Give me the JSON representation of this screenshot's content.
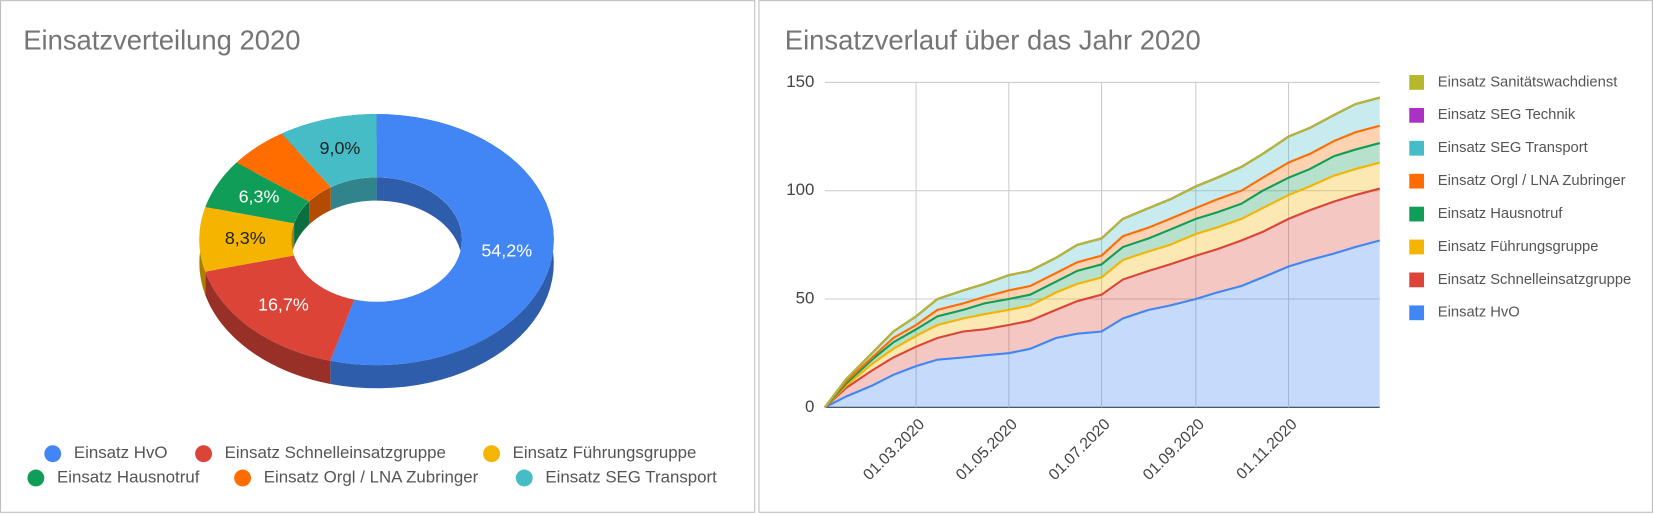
{
  "chart_data": [
    {
      "type": "donut",
      "title": "Einsatzverteilung 2020",
      "categories": [
        "Einsatz HvO",
        "Einsatz Schnelleinsatzgruppe",
        "Einsatz Führungsgruppe",
        "Einsatz Hausnotruf",
        "Einsatz Orgl / LNA Zubringer",
        "Einsatz SEG Transport"
      ],
      "values": [
        54.2,
        16.7,
        8.3,
        6.3,
        5.5,
        9.0
      ],
      "value_labels": [
        "54,2%",
        "16,7%",
        "8,3%",
        "6,3%",
        null,
        "9,0%"
      ],
      "colors": [
        "#4285f4",
        "#db4437",
        "#f4b400",
        "#0f9d58",
        "#ff6d01",
        "#46bdc6"
      ],
      "legend": "bottom"
    },
    {
      "type": "area",
      "stacked": true,
      "title": "Einsatzverlauf über das Jahr 2020",
      "x": [
        "2020-01-01",
        "2020-01-15",
        "2020-02-01",
        "2020-02-15",
        "2020-03-01",
        "2020-03-15",
        "2020-04-01",
        "2020-04-15",
        "2020-05-01",
        "2020-05-15",
        "2020-06-01",
        "2020-06-15",
        "2020-07-01",
        "2020-07-15",
        "2020-08-01",
        "2020-08-15",
        "2020-09-01",
        "2020-09-15",
        "2020-10-01",
        "2020-10-15",
        "2020-11-01",
        "2020-11-15",
        "2020-12-01",
        "2020-12-15",
        "2020-12-31"
      ],
      "series": [
        {
          "name": "Einsatz HvO",
          "color": "#4285f4",
          "values": [
            0,
            5,
            10,
            15,
            19,
            22,
            23,
            24,
            25,
            27,
            32,
            34,
            35,
            41,
            45,
            47,
            50,
            53,
            56,
            60,
            65,
            68,
            71,
            74,
            77
          ]
        },
        {
          "name": "Einsatz Schnelleinsatzgruppe",
          "color": "#db4437",
          "values": [
            0,
            4,
            7,
            8,
            9,
            10,
            12,
            12,
            13,
            13,
            13,
            15,
            17,
            18,
            18,
            19,
            20,
            20,
            21,
            21,
            22,
            23,
            24,
            24,
            24
          ]
        },
        {
          "name": "Einsatz Führungsgruppe",
          "color": "#f4b400",
          "values": [
            0,
            1,
            3,
            4,
            5,
            6,
            6,
            7,
            7,
            7,
            8,
            8,
            8,
            9,
            9,
            9,
            10,
            10,
            10,
            11,
            11,
            11,
            12,
            12,
            12
          ]
        },
        {
          "name": "Einsatz Hausnotruf",
          "color": "#0f9d58",
          "values": [
            0,
            1,
            2,
            3,
            3,
            4,
            4,
            5,
            5,
            5,
            5,
            6,
            6,
            6,
            6,
            7,
            7,
            7,
            7,
            8,
            8,
            8,
            9,
            9,
            9
          ]
        },
        {
          "name": "Einsatz Orgl / LNA Zubringer",
          "color": "#ff6d01",
          "values": [
            0,
            1,
            1,
            2,
            2,
            3,
            3,
            3,
            4,
            4,
            4,
            4,
            4,
            5,
            5,
            5,
            5,
            6,
            6,
            6,
            7,
            7,
            7,
            8,
            8
          ]
        },
        {
          "name": "Einsatz SEG Transport",
          "color": "#46bdc6",
          "values": [
            0,
            1,
            2,
            3,
            4,
            5,
            6,
            6,
            7,
            7,
            7,
            8,
            8,
            8,
            9,
            9,
            10,
            10,
            11,
            11,
            12,
            12,
            12,
            13,
            13
          ]
        },
        {
          "name": "Einsatz SEG Technik",
          "color": "#ab30c4",
          "values": [
            0,
            0,
            0,
            0,
            0,
            0,
            0,
            0,
            0,
            0,
            0,
            0,
            0,
            0,
            0,
            0,
            0,
            0,
            0,
            0,
            0,
            0,
            0,
            0,
            0
          ]
        },
        {
          "name": "Einsatz Sanitätswachdienst",
          "color": "#b5b82b",
          "values": [
            0,
            0,
            0,
            0,
            0,
            0,
            0,
            0,
            0,
            0,
            0,
            0,
            0,
            0,
            0,
            0,
            0,
            0,
            0,
            0,
            0,
            0,
            0,
            0,
            0
          ]
        }
      ],
      "xlim": [
        "2020-01-01",
        "2020-12-31"
      ],
      "xticks": [
        {
          "value": "2020-03-01",
          "label": "01.03.2020"
        },
        {
          "value": "2020-05-01",
          "label": "01.05.2020"
        },
        {
          "value": "2020-07-01",
          "label": "01.07.2020"
        },
        {
          "value": "2020-09-01",
          "label": "01.09.2020"
        },
        {
          "value": "2020-11-01",
          "label": "01.11.2020"
        }
      ],
      "ylim": [
        0,
        150
      ],
      "yticks": [
        0,
        50,
        100,
        150
      ],
      "grid": true,
      "legend": "right"
    }
  ]
}
